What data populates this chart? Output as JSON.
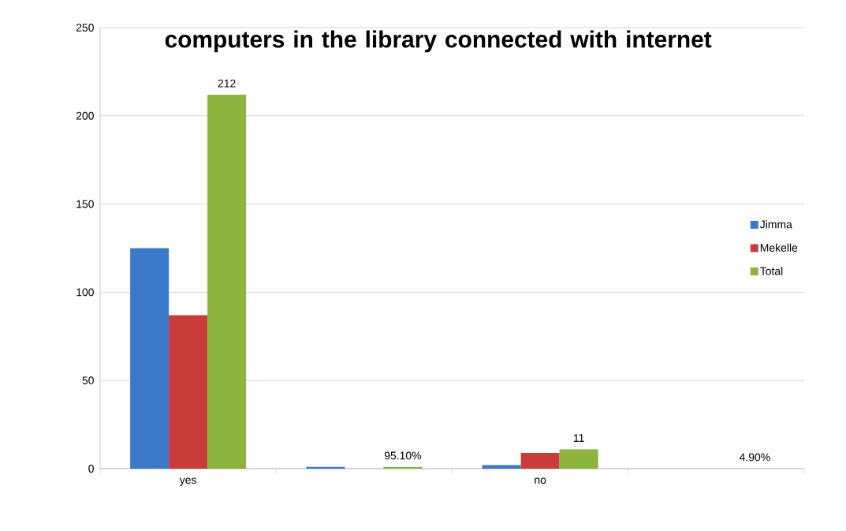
{
  "chart_data": {
    "type": "bar",
    "title": "computers in the library connected with internet",
    "categories": [
      "yes",
      null,
      "no",
      null
    ],
    "series": [
      {
        "name": "Jimma",
        "color": "#3a78c8",
        "values": [
          125,
          1,
          2,
          null
        ]
      },
      {
        "name": "Mekelle",
        "color": "#c83c3a",
        "values": [
          87,
          null,
          9,
          null
        ]
      },
      {
        "name": "Total",
        "color": "#8cb43f",
        "values": [
          212,
          0.951,
          11,
          0.049
        ],
        "value_labels": [
          "212",
          "95.10%",
          "11",
          "4.90%"
        ]
      }
    ],
    "ylim": [
      0,
      250
    ],
    "yticks": [
      0,
      50,
      100,
      150,
      200,
      250
    ],
    "grid": "y",
    "legend": "right"
  }
}
